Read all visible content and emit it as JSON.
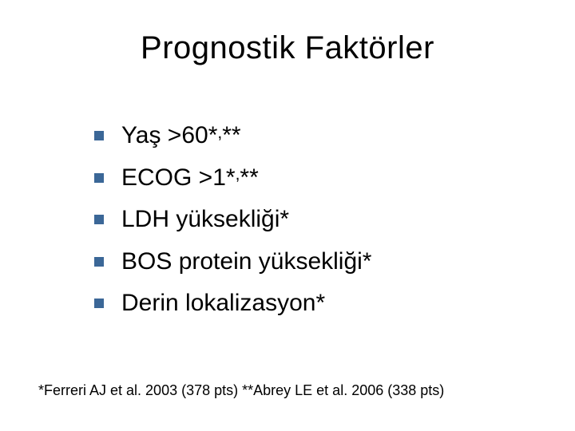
{
  "slide": {
    "title": "Prognostik Faktörler",
    "title_fontsize": 40,
    "title_color": "#000000",
    "background_color": "#ffffff",
    "bullets": {
      "marker_color": "#3b6797",
      "marker_size": 12,
      "text_color": "#000000",
      "text_fontsize": 30,
      "items": [
        {
          "text_pre": "Yaş >60*",
          "sup": ",",
          "text_post": "**"
        },
        {
          "text_pre": "ECOG >1*",
          "sup": ",",
          "text_post": "**"
        },
        {
          "text_pre": "LDH yüksekliği*",
          "sup": "",
          "text_post": ""
        },
        {
          "text_pre": "BOS protein yüksekliği*",
          "sup": "",
          "text_post": ""
        },
        {
          "text_pre": "Derin lokalizasyon*",
          "sup": "",
          "text_post": ""
        }
      ]
    },
    "footnote": {
      "text": "*Ferreri AJ et al. 2003 (378 pts)  **Abrey LE et al. 2006 (338 pts)",
      "fontsize": 18,
      "color": "#000000"
    }
  }
}
